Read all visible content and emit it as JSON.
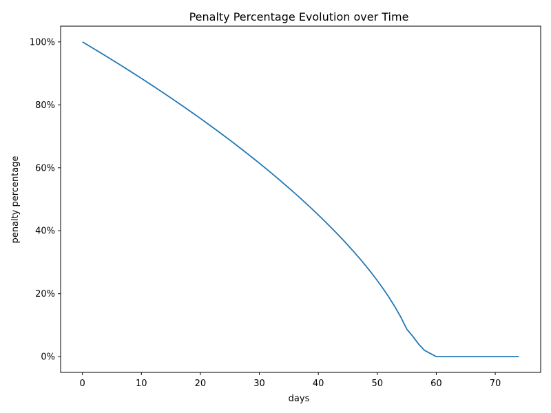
{
  "chart_data": {
    "type": "line",
    "title": "Penalty Percentage Evolution over Time",
    "xlabel": "days",
    "ylabel": "penalty percentage",
    "xlim": [
      -3.7,
      77.7
    ],
    "ylim": [
      -0.05,
      1.05
    ],
    "x_ticks": [
      0,
      10,
      20,
      30,
      40,
      50,
      60,
      70
    ],
    "x_tick_labels": [
      "0",
      "10",
      "20",
      "30",
      "40",
      "50",
      "60",
      "70"
    ],
    "y_ticks": [
      0,
      0.2,
      0.4,
      0.6,
      0.8,
      1.0
    ],
    "y_tick_labels": [
      "0%",
      "20%",
      "40%",
      "60%",
      "80%",
      "100%"
    ],
    "grid": false,
    "series": [
      {
        "color": "#1f77b4",
        "x": [
          0,
          1,
          2,
          3,
          4,
          5,
          6,
          7,
          8,
          9,
          10,
          11,
          12,
          13,
          14,
          15,
          16,
          17,
          18,
          19,
          20,
          21,
          22,
          23,
          24,
          25,
          26,
          27,
          28,
          29,
          30,
          31,
          32,
          33,
          34,
          35,
          36,
          37,
          38,
          39,
          40,
          41,
          42,
          43,
          44,
          45,
          46,
          47,
          48,
          49,
          50,
          51,
          52,
          53,
          54,
          55,
          56,
          57,
          58,
          59,
          60,
          61,
          62,
          63,
          64,
          65,
          66,
          67,
          68,
          69,
          70,
          71,
          72,
          73,
          74
        ],
        "y": [
          1.0,
          0.9888,
          0.9776,
          0.9662,
          0.9548,
          0.9432,
          0.9316,
          0.9198,
          0.908,
          0.8961,
          0.884,
          0.8718,
          0.8596,
          0.8472,
          0.8346,
          0.822,
          0.8092,
          0.7963,
          0.7833,
          0.7701,
          0.7568,
          0.7433,
          0.7297,
          0.7159,
          0.702,
          0.6879,
          0.6736,
          0.6591,
          0.6445,
          0.6296,
          0.6146,
          0.5993,
          0.5838,
          0.5681,
          0.5521,
          0.5359,
          0.5194,
          0.5026,
          0.4855,
          0.468,
          0.4502,
          0.432,
          0.4134,
          0.3943,
          0.3747,
          0.3545,
          0.3337,
          0.3121,
          0.2897,
          0.2663,
          0.2417,
          0.2157,
          0.188,
          0.158,
          0.125,
          0.0874,
          0.065,
          0.04,
          0.02,
          0.01,
          0,
          0,
          0,
          0,
          0,
          0,
          0,
          0,
          0,
          0,
          0,
          0,
          0,
          0,
          0
        ]
      }
    ]
  }
}
